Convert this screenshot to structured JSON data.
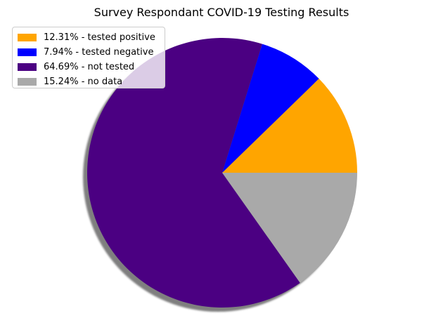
{
  "chart_data": {
    "type": "pie",
    "title": "Survey Respondant COVID-19 Testing Results",
    "start_angle": 0,
    "direction": "counterclockwise",
    "shadow": true,
    "legend_position": "upper-left",
    "slices": [
      {
        "label": "12.31% - tested positive",
        "value": 12.31,
        "color": "#ffa500"
      },
      {
        "label": "7.94% - tested negative",
        "value": 7.94,
        "color": "#0000ff"
      },
      {
        "label": "64.69% - not tested",
        "value": 64.69,
        "color": "#4b0082"
      },
      {
        "label": "15.24% - no data",
        "value": 15.24,
        "color": "#a9a9a9"
      }
    ]
  }
}
